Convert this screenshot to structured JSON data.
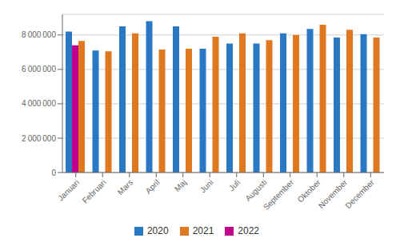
{
  "chart_data": {
    "type": "bar",
    "categories": [
      "Januari",
      "Februari",
      "Mars",
      "April",
      "Maj",
      "Juni",
      "Juli",
      "Augusti",
      "September",
      "Oktober",
      "November",
      "December"
    ],
    "series": [
      {
        "name": "2020",
        "color": "#2878c3",
        "values": [
          8200000,
          7100000,
          8500000,
          8800000,
          8500000,
          7200000,
          7500000,
          7500000,
          8100000,
          8350000,
          7850000,
          8050000
        ]
      },
      {
        "name": "2022",
        "color": "#c0008c",
        "values": [
          7400000,
          0,
          0,
          0,
          0,
          0,
          0,
          0,
          0,
          0,
          0,
          0
        ]
      },
      {
        "name": "2021",
        "color": "#e07820",
        "values": [
          7650000,
          7050000,
          8100000,
          7150000,
          7200000,
          7900000,
          8100000,
          7700000,
          8000000,
          8600000,
          8300000,
          7850000
        ]
      }
    ],
    "ylim": [
      0,
      9200000
    ],
    "yticks": [
      0,
      {
        "value": 2000000,
        "label": "2 000 000"
      },
      {
        "value": 4000000,
        "label": "4 000 000"
      },
      {
        "value": 6000000,
        "label": "6 000 000"
      },
      {
        "value": 8000000,
        "label": "8 000 000"
      }
    ],
    "grid": true,
    "legend": "bottom"
  }
}
